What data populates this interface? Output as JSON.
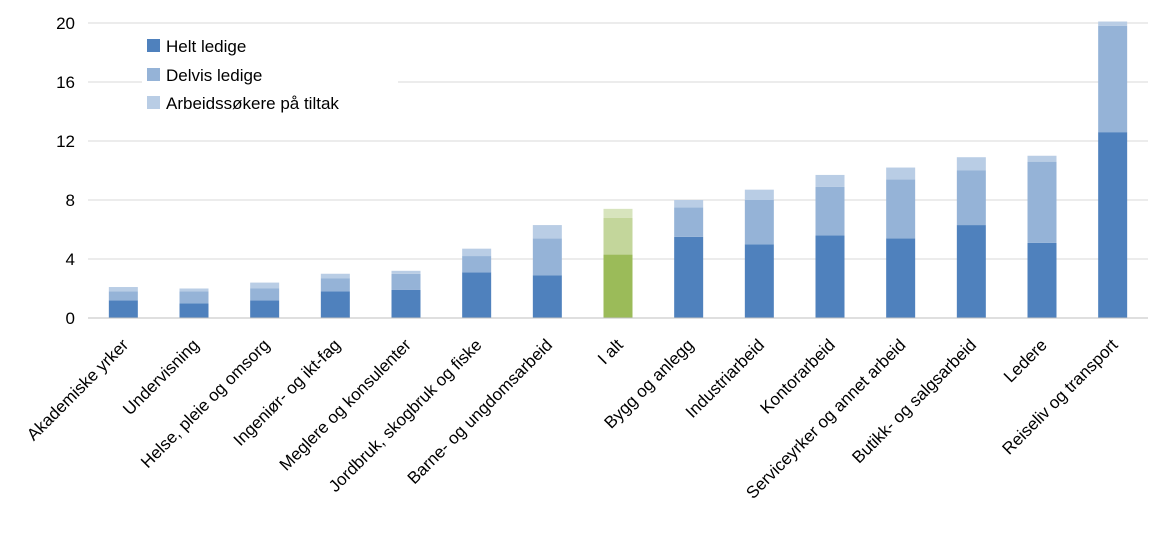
{
  "chart_data": {
    "type": "bar",
    "stacked": true,
    "categories": [
      "Akademiske yrker",
      "Undervisning",
      "Helse, pleie og omsorg",
      "Ingeniør- og ikt-fag",
      "Meglere og konsulenter",
      "Jordbruk, skogbruk og fiske",
      "Barne- og ungdomsarbeid",
      "I alt",
      "Bygg og anlegg",
      "Industriarbeid",
      "Kontorarbeid",
      "Serviceyrker og annet arbeid",
      "Butikk- og salgsarbeid",
      "Ledere",
      "Reiseliv og transport"
    ],
    "series": [
      {
        "name": "Helt ledige",
        "color": "#4f81bd",
        "values": [
          1.2,
          1.0,
          1.2,
          1.8,
          1.9,
          3.1,
          2.9,
          4.3,
          5.5,
          5.0,
          5.6,
          5.4,
          6.3,
          5.1,
          12.6
        ]
      },
      {
        "name": "Delvis ledige",
        "color": "#95b3d7",
        "values": [
          0.6,
          0.8,
          0.8,
          0.9,
          1.1,
          1.1,
          2.5,
          2.5,
          2.0,
          3.0,
          3.3,
          4.0,
          3.7,
          5.5,
          7.2
        ]
      },
      {
        "name": "Arbeidssøkere på tiltak",
        "color": "#b9cde5",
        "values": [
          0.3,
          0.2,
          0.4,
          0.3,
          0.2,
          0.5,
          0.9,
          0.6,
          0.5,
          0.7,
          0.8,
          0.8,
          0.9,
          0.4,
          0.3
        ]
      }
    ],
    "highlight": {
      "category": "I alt",
      "colors": [
        "#9bbb59",
        "#c3d69b",
        "#d7e4bd"
      ]
    },
    "yticks": [
      "0",
      "4",
      "8",
      "12",
      "16",
      "20"
    ],
    "ylim": [
      0,
      20
    ],
    "grid": true,
    "legend": "top-left, inside plot",
    "title": "",
    "xlabel": "",
    "ylabel": ""
  }
}
